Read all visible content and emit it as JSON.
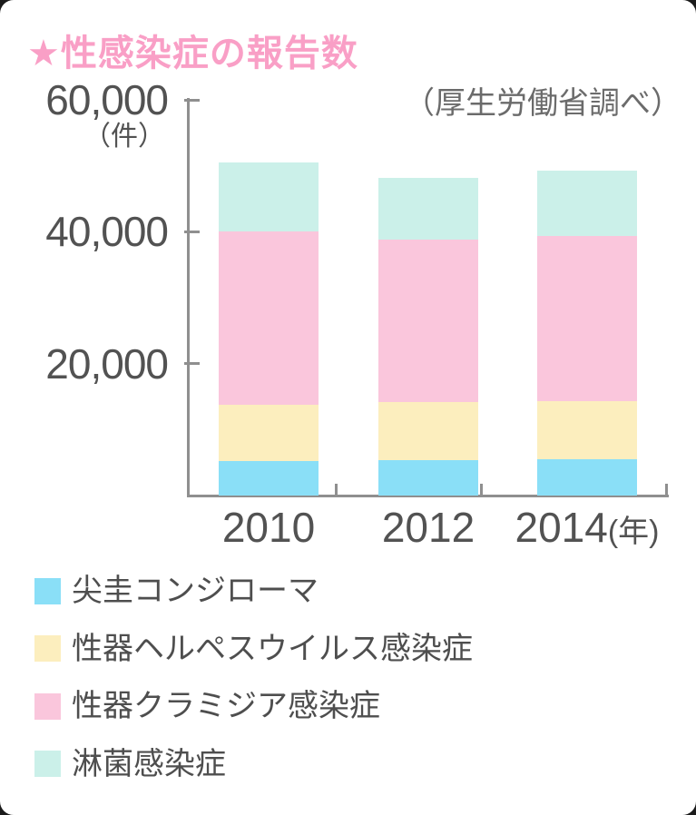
{
  "card": {
    "title": "★性感染症の報告数",
    "source_note": "（厚生労働省調べ）"
  },
  "chart_data": {
    "type": "bar",
    "stacked": true,
    "title": "性感染症の報告数",
    "xlabel": "",
    "ylabel": "件",
    "unit_y": "（件）",
    "unit_x": "(年)",
    "categories": [
      "2010",
      "2012",
      "2014"
    ],
    "series": [
      {
        "name": "尖圭コンジローマ",
        "color": "#8ADFF7",
        "values": [
          5200,
          5400,
          5500
        ]
      },
      {
        "name": "性器ヘルペスウイルス感染症",
        "color": "#FCEEBE",
        "values": [
          8500,
          8800,
          8800
        ]
      },
      {
        "name": "性器クラミジア感染症",
        "color": "#FAC6DC",
        "values": [
          26300,
          24600,
          25100
        ]
      },
      {
        "name": "淋菌感染症",
        "color": "#CBF0E9",
        "values": [
          10500,
          9400,
          9900
        ]
      }
    ],
    "totals": [
      50500,
      48200,
      49300
    ],
    "ylim": [
      0,
      60000
    ],
    "yticks": [
      {
        "value": 60000,
        "label": "60,000"
      },
      {
        "value": 40000,
        "label": "40,000"
      },
      {
        "value": 20000,
        "label": "20,000"
      }
    ],
    "grid": false,
    "legend_position": "bottom"
  },
  "colors": {
    "title_pink": "#F99FC6",
    "axis_gray": "#8f8f8f",
    "text_gray": "#525252",
    "bar_blue": "#8ADFF7",
    "bar_yellow": "#FCEEBE",
    "bar_pink": "#FAC6DC",
    "bar_mint": "#CBF0E9"
  }
}
